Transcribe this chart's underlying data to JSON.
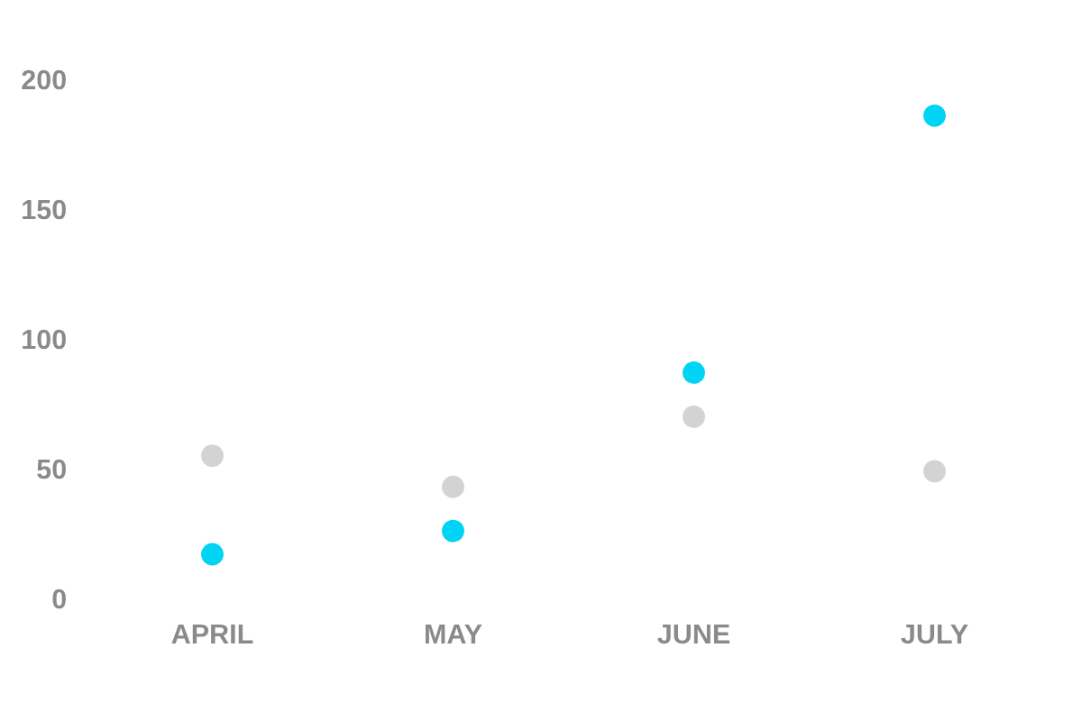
{
  "chart_data": {
    "type": "scatter",
    "categories": [
      "APRIL",
      "MAY",
      "JUNE",
      "JULY"
    ],
    "series": [
      {
        "color": "#d3d3d3",
        "values": [
          55,
          43,
          70,
          49
        ]
      },
      {
        "color": "#00d4f5",
        "values": [
          17,
          26,
          87,
          186
        ]
      }
    ],
    "ylim": [
      0,
      200
    ],
    "yticks": [
      0,
      50,
      100,
      150,
      200
    ],
    "grid": false,
    "legend": false,
    "marker": "circle"
  }
}
